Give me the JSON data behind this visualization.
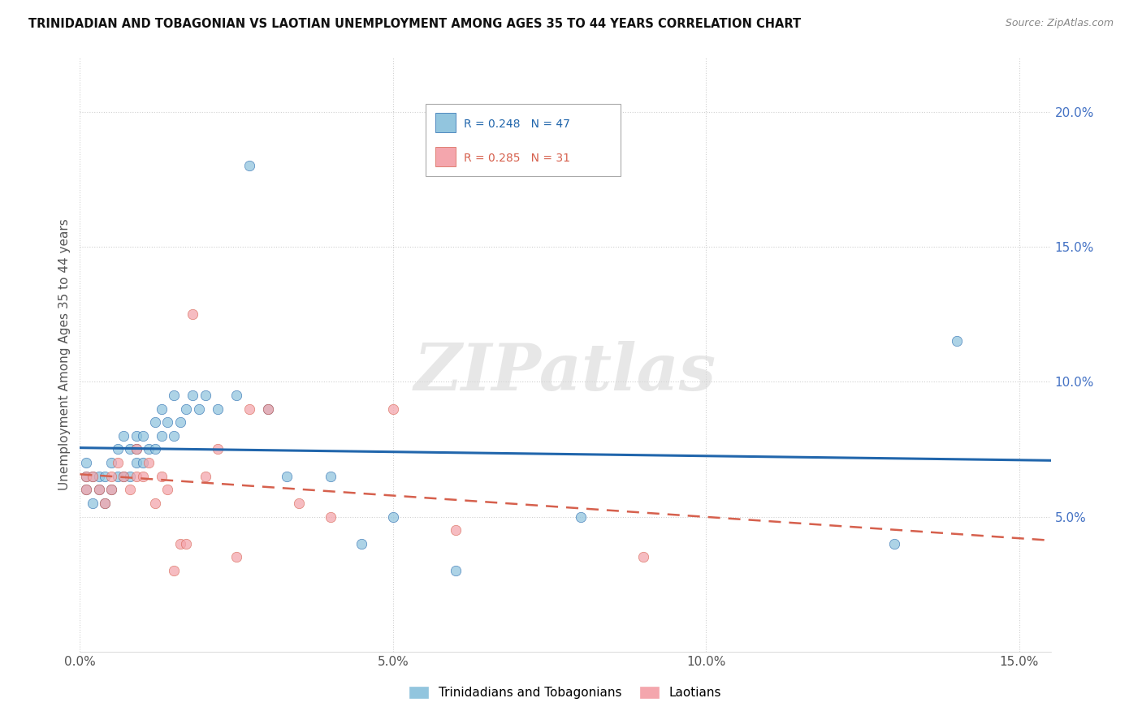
{
  "title": "TRINIDADIAN AND TOBAGONIAN VS LAOTIAN UNEMPLOYMENT AMONG AGES 35 TO 44 YEARS CORRELATION CHART",
  "source": "Source: ZipAtlas.com",
  "ylabel": "Unemployment Among Ages 35 to 44 years",
  "watermark": "ZIPatlas",
  "xlim": [
    0.0,
    0.155
  ],
  "ylim": [
    0.0,
    0.22
  ],
  "xticks": [
    0.0,
    0.05,
    0.1,
    0.15
  ],
  "yticks": [
    0.05,
    0.1,
    0.15,
    0.2
  ],
  "xtick_labels": [
    "0.0%",
    "5.0%",
    "10.0%",
    "15.0%"
  ],
  "ytick_labels": [
    "5.0%",
    "10.0%",
    "15.0%",
    "20.0%"
  ],
  "legend1_text": "R = 0.248   N = 47",
  "legend2_text": "R = 0.285   N = 31",
  "group1_color": "#92c5de",
  "group2_color": "#f4a6ad",
  "line1_color": "#2166ac",
  "line2_color": "#d6604d",
  "legend1_label": "Trinidadians and Tobagonians",
  "legend2_label": "Laotians",
  "scatter1_x": [
    0.001,
    0.001,
    0.001,
    0.002,
    0.002,
    0.003,
    0.003,
    0.004,
    0.004,
    0.005,
    0.005,
    0.006,
    0.006,
    0.007,
    0.007,
    0.008,
    0.008,
    0.009,
    0.009,
    0.009,
    0.01,
    0.01,
    0.011,
    0.012,
    0.012,
    0.013,
    0.013,
    0.014,
    0.015,
    0.015,
    0.016,
    0.017,
    0.018,
    0.019,
    0.02,
    0.022,
    0.025,
    0.027,
    0.03,
    0.033,
    0.04,
    0.045,
    0.05,
    0.06,
    0.08,
    0.13,
    0.14
  ],
  "scatter1_y": [
    0.065,
    0.07,
    0.06,
    0.065,
    0.055,
    0.06,
    0.065,
    0.065,
    0.055,
    0.06,
    0.07,
    0.065,
    0.075,
    0.065,
    0.08,
    0.065,
    0.075,
    0.07,
    0.075,
    0.08,
    0.07,
    0.08,
    0.075,
    0.075,
    0.085,
    0.08,
    0.09,
    0.085,
    0.08,
    0.095,
    0.085,
    0.09,
    0.095,
    0.09,
    0.095,
    0.09,
    0.095,
    0.18,
    0.09,
    0.065,
    0.065,
    0.04,
    0.05,
    0.03,
    0.05,
    0.04,
    0.115
  ],
  "scatter2_x": [
    0.001,
    0.001,
    0.002,
    0.003,
    0.004,
    0.005,
    0.005,
    0.006,
    0.007,
    0.008,
    0.009,
    0.009,
    0.01,
    0.011,
    0.012,
    0.013,
    0.014,
    0.015,
    0.016,
    0.017,
    0.018,
    0.02,
    0.022,
    0.025,
    0.027,
    0.03,
    0.035,
    0.04,
    0.05,
    0.06,
    0.09
  ],
  "scatter2_y": [
    0.06,
    0.065,
    0.065,
    0.06,
    0.055,
    0.06,
    0.065,
    0.07,
    0.065,
    0.06,
    0.065,
    0.075,
    0.065,
    0.07,
    0.055,
    0.065,
    0.06,
    0.03,
    0.04,
    0.04,
    0.125,
    0.065,
    0.075,
    0.035,
    0.09,
    0.09,
    0.055,
    0.05,
    0.09,
    0.045,
    0.035
  ],
  "background_color": "#ffffff",
  "grid_color": "#d0d0d0"
}
